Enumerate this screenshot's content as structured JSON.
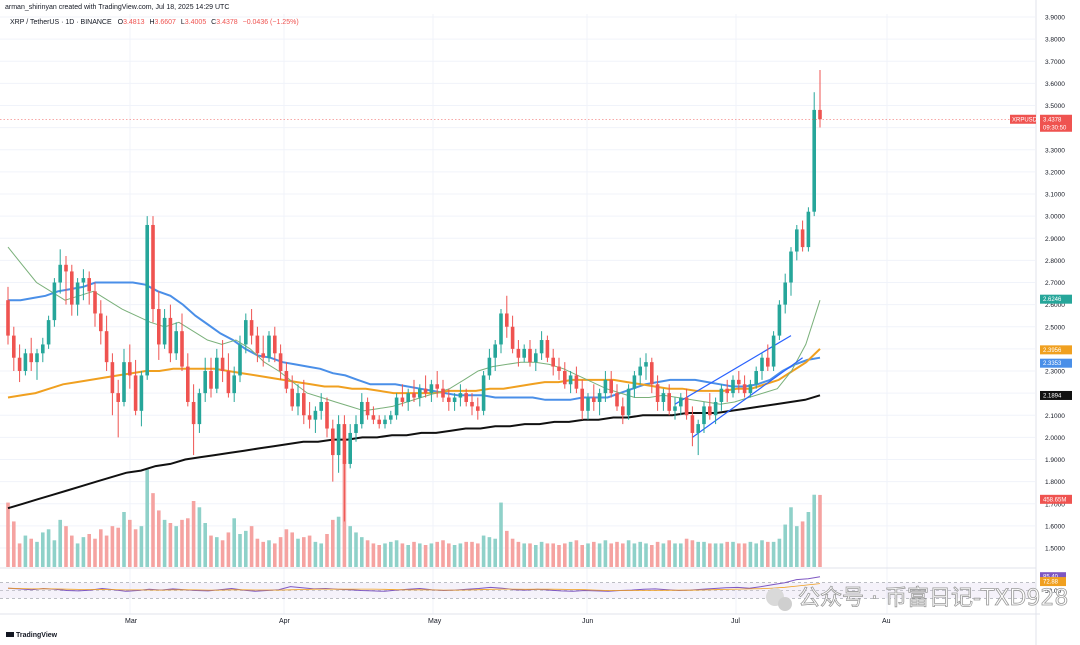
{
  "header": {
    "author_line": "arman_shirinyan created with TradingView.com, Jul 18, 2025 14:29 UTC",
    "symbol_line": "XRP / TetherUS · 1D · BINANCE",
    "open_label": "O",
    "open": "3.4813",
    "high_label": "H",
    "high": "3.6607",
    "low_label": "L",
    "low": "3.4005",
    "close_label": "C",
    "close": "3.4378",
    "change": "−0.0436 (−1.25%)"
  },
  "footer": {
    "brand": "TradingView"
  },
  "watermark": {
    "text": "公众号 · 币富日记-TXD928"
  },
  "colors": {
    "up": "#26a69a",
    "down": "#ef5350",
    "vol_up": "#8fd1c9",
    "vol_down": "#f5a3a1",
    "ema_fast": "#4a8fe8",
    "ema_mid": "#f0a020",
    "ma_long": "#111111",
    "ma_short": "#7ab07a",
    "rsi": "#7e57c2",
    "trendline": "#2962ff"
  },
  "price_axis": {
    "ticks": [
      "3.9000",
      "3.8000",
      "3.7000",
      "3.6000",
      "3.5000",
      "3.4000",
      "3.3000",
      "3.2000",
      "3.1000",
      "3.0000",
      "2.9000",
      "2.8000",
      "2.7000",
      "2.6000",
      "2.5000",
      "2.4000",
      "2.3000",
      "2.2000",
      "2.1000",
      "2.0000",
      "1.9000",
      "1.8000",
      "1.7000",
      "1.6000",
      "1.5000"
    ],
    "badges": [
      {
        "text": "XRPUSDT",
        "color": "#ef5350",
        "value": 3.4378
      },
      {
        "text": "3.4378",
        "color": "#ef5350",
        "value": 3.4378
      },
      {
        "text": "09:30:50",
        "color": "#ef5350",
        "value": 3.4378
      },
      {
        "text": "2.6246",
        "color": "#26a69a",
        "value": 2.6246
      },
      {
        "text": "2.3956",
        "color": "#f0a020",
        "value": 2.3956
      },
      {
        "text": "2.3353",
        "color": "#4a8fe8",
        "value": 2.3353
      },
      {
        "text": "2.1894",
        "color": "#111111",
        "value": 2.1894
      },
      {
        "text": "458.65M",
        "color": "#ef5350",
        "value": 1.72
      }
    ]
  },
  "rsi_panel": {
    "ticks": [
      "50.00"
    ],
    "badges": [
      {
        "text": "85.40",
        "color": "#7e57c2",
        "value": 85.4
      },
      {
        "text": "72.88",
        "color": "#f0a020",
        "value": 72.88
      }
    ]
  },
  "chart_data": {
    "type": "candlestick",
    "symbol": "XRP / TetherUS",
    "timeframe": "1D",
    "exchange": "BINANCE",
    "x_ticks": [
      "Mar",
      "Apr",
      "May",
      "Jun",
      "Jul",
      "Au"
    ],
    "ylim": [
      1.4,
      3.93
    ],
    "grid": true,
    "candles": [
      [
        2.62,
        2.68,
        2.42,
        2.46
      ],
      [
        2.46,
        2.5,
        2.3,
        2.36
      ],
      [
        2.36,
        2.42,
        2.25,
        2.3
      ],
      [
        2.3,
        2.4,
        2.28,
        2.38
      ],
      [
        2.38,
        2.45,
        2.3,
        2.34
      ],
      [
        2.34,
        2.4,
        2.26,
        2.38
      ],
      [
        2.38,
        2.45,
        2.34,
        2.42
      ],
      [
        2.42,
        2.55,
        2.4,
        2.53
      ],
      [
        2.53,
        2.72,
        2.5,
        2.7
      ],
      [
        2.7,
        2.85,
        2.65,
        2.78
      ],
      [
        2.78,
        2.82,
        2.6,
        2.75
      ],
      [
        2.75,
        2.78,
        2.55,
        2.6
      ],
      [
        2.6,
        2.72,
        2.55,
        2.7
      ],
      [
        2.7,
        2.76,
        2.62,
        2.72
      ],
      [
        2.72,
        2.75,
        2.6,
        2.66
      ],
      [
        2.66,
        2.7,
        2.5,
        2.56
      ],
      [
        2.56,
        2.62,
        2.42,
        2.48
      ],
      [
        2.48,
        2.55,
        2.3,
        2.34
      ],
      [
        2.34,
        2.38,
        2.1,
        2.2
      ],
      [
        2.2,
        2.26,
        2.0,
        2.16
      ],
      [
        2.16,
        2.4,
        2.14,
        2.34
      ],
      [
        2.34,
        2.42,
        2.22,
        2.28
      ],
      [
        2.28,
        2.35,
        2.1,
        2.12
      ],
      [
        2.12,
        2.3,
        2.05,
        2.28
      ],
      [
        2.28,
        3.0,
        2.26,
        2.96
      ],
      [
        2.96,
        3.0,
        2.52,
        2.58
      ],
      [
        2.58,
        2.66,
        2.35,
        2.42
      ],
      [
        2.42,
        2.58,
        2.4,
        2.54
      ],
      [
        2.54,
        2.6,
        2.34,
        2.38
      ],
      [
        2.38,
        2.52,
        2.35,
        2.48
      ],
      [
        2.48,
        2.56,
        2.3,
        2.32
      ],
      [
        2.32,
        2.38,
        2.14,
        2.16
      ],
      [
        2.16,
        2.24,
        1.92,
        2.06
      ],
      [
        2.06,
        2.22,
        2.02,
        2.2
      ],
      [
        2.2,
        2.36,
        2.16,
        2.3
      ],
      [
        2.3,
        2.36,
        2.18,
        2.22
      ],
      [
        2.22,
        2.4,
        2.2,
        2.36
      ],
      [
        2.36,
        2.44,
        2.25,
        2.3
      ],
      [
        2.3,
        2.38,
        2.18,
        2.2
      ],
      [
        2.2,
        2.32,
        2.16,
        2.28
      ],
      [
        2.28,
        2.46,
        2.25,
        2.42
      ],
      [
        2.42,
        2.56,
        2.38,
        2.53
      ],
      [
        2.53,
        2.58,
        2.42,
        2.46
      ],
      [
        2.46,
        2.5,
        2.34,
        2.38
      ],
      [
        2.38,
        2.46,
        2.32,
        2.36
      ],
      [
        2.36,
        2.48,
        2.34,
        2.46
      ],
      [
        2.46,
        2.5,
        2.34,
        2.38
      ],
      [
        2.38,
        2.42,
        2.26,
        2.3
      ],
      [
        2.3,
        2.34,
        2.2,
        2.22
      ],
      [
        2.22,
        2.28,
        2.12,
        2.14
      ],
      [
        2.14,
        2.24,
        2.1,
        2.2
      ],
      [
        2.2,
        2.26,
        2.06,
        2.1
      ],
      [
        2.1,
        2.16,
        2.04,
        2.08
      ],
      [
        2.08,
        2.14,
        2.02,
        2.12
      ],
      [
        2.12,
        2.2,
        2.08,
        2.16
      ],
      [
        2.16,
        2.18,
        2.0,
        2.04
      ],
      [
        2.04,
        2.08,
        1.8,
        1.92
      ],
      [
        1.92,
        2.1,
        1.84,
        2.06
      ],
      [
        2.06,
        2.1,
        1.62,
        1.88
      ],
      [
        1.88,
        2.06,
        1.86,
        2.02
      ],
      [
        2.02,
        2.1,
        1.98,
        2.06
      ],
      [
        2.06,
        2.2,
        2.04,
        2.16
      ],
      [
        2.16,
        2.18,
        2.08,
        2.1
      ],
      [
        2.1,
        2.14,
        2.06,
        2.08
      ],
      [
        2.08,
        2.1,
        2.04,
        2.06
      ],
      [
        2.06,
        2.1,
        2.04,
        2.08
      ],
      [
        2.08,
        2.12,
        2.06,
        2.1
      ],
      [
        2.1,
        2.2,
        2.08,
        2.18
      ],
      [
        2.18,
        2.24,
        2.14,
        2.16
      ],
      [
        2.16,
        2.22,
        2.12,
        2.2
      ],
      [
        2.2,
        2.26,
        2.16,
        2.18
      ],
      [
        2.18,
        2.24,
        2.14,
        2.22
      ],
      [
        2.22,
        2.28,
        2.18,
        2.2
      ],
      [
        2.2,
        2.26,
        2.16,
        2.24
      ],
      [
        2.24,
        2.3,
        2.18,
        2.22
      ],
      [
        2.22,
        2.26,
        2.16,
        2.18
      ],
      [
        2.18,
        2.22,
        2.12,
        2.16
      ],
      [
        2.16,
        2.2,
        2.12,
        2.18
      ],
      [
        2.18,
        2.24,
        2.14,
        2.2
      ],
      [
        2.2,
        2.22,
        2.14,
        2.16
      ],
      [
        2.16,
        2.2,
        2.1,
        2.14
      ],
      [
        2.14,
        2.18,
        2.08,
        2.12
      ],
      [
        2.12,
        2.3,
        2.1,
        2.28
      ],
      [
        2.28,
        2.4,
        2.26,
        2.36
      ],
      [
        2.36,
        2.44,
        2.3,
        2.42
      ],
      [
        2.42,
        2.58,
        2.38,
        2.56
      ],
      [
        2.56,
        2.64,
        2.45,
        2.5
      ],
      [
        2.5,
        2.55,
        2.38,
        2.4
      ],
      [
        2.4,
        2.44,
        2.32,
        2.36
      ],
      [
        2.36,
        2.42,
        2.34,
        2.4
      ],
      [
        2.4,
        2.44,
        2.32,
        2.34
      ],
      [
        2.34,
        2.4,
        2.3,
        2.38
      ],
      [
        2.38,
        2.48,
        2.35,
        2.44
      ],
      [
        2.44,
        2.46,
        2.34,
        2.36
      ],
      [
        2.36,
        2.4,
        2.28,
        2.32
      ],
      [
        2.32,
        2.36,
        2.26,
        2.3
      ],
      [
        2.3,
        2.34,
        2.22,
        2.24
      ],
      [
        2.24,
        2.3,
        2.2,
        2.28
      ],
      [
        2.28,
        2.32,
        2.2,
        2.22
      ],
      [
        2.22,
        2.26,
        2.08,
        2.12
      ],
      [
        2.12,
        2.2,
        2.08,
        2.18
      ],
      [
        2.18,
        2.24,
        2.12,
        2.16
      ],
      [
        2.16,
        2.22,
        2.1,
        2.2
      ],
      [
        2.2,
        2.3,
        2.16,
        2.26
      ],
      [
        2.26,
        2.3,
        2.18,
        2.2
      ],
      [
        2.2,
        2.24,
        2.12,
        2.14
      ],
      [
        2.14,
        2.18,
        2.06,
        2.1
      ],
      [
        2.1,
        2.24,
        2.08,
        2.22
      ],
      [
        2.22,
        2.3,
        2.18,
        2.28
      ],
      [
        2.28,
        2.36,
        2.24,
        2.32
      ],
      [
        2.32,
        2.38,
        2.26,
        2.34
      ],
      [
        2.34,
        2.36,
        2.2,
        2.24
      ],
      [
        2.24,
        2.28,
        2.12,
        2.16
      ],
      [
        2.16,
        2.22,
        2.12,
        2.2
      ],
      [
        2.2,
        2.24,
        2.1,
        2.12
      ],
      [
        2.12,
        2.18,
        2.08,
        2.14
      ],
      [
        2.14,
        2.2,
        2.1,
        2.18
      ],
      [
        2.18,
        2.22,
        2.08,
        2.1
      ],
      [
        2.1,
        2.14,
        1.96,
        2.02
      ],
      [
        2.02,
        2.08,
        1.92,
        2.06
      ],
      [
        2.06,
        2.16,
        2.02,
        2.14
      ],
      [
        2.14,
        2.2,
        2.08,
        2.1
      ],
      [
        2.1,
        2.18,
        2.06,
        2.16
      ],
      [
        2.16,
        2.24,
        2.12,
        2.22
      ],
      [
        2.22,
        2.26,
        2.16,
        2.2
      ],
      [
        2.2,
        2.28,
        2.18,
        2.26
      ],
      [
        2.26,
        2.3,
        2.2,
        2.24
      ],
      [
        2.24,
        2.28,
        2.18,
        2.2
      ],
      [
        2.2,
        2.26,
        2.18,
        2.24
      ],
      [
        2.24,
        2.32,
        2.22,
        2.3
      ],
      [
        2.3,
        2.38,
        2.26,
        2.36
      ],
      [
        2.36,
        2.42,
        2.3,
        2.32
      ],
      [
        2.32,
        2.48,
        2.3,
        2.46
      ],
      [
        2.46,
        2.62,
        2.44,
        2.6
      ],
      [
        2.6,
        2.74,
        2.56,
        2.7
      ],
      [
        2.7,
        2.86,
        2.64,
        2.84
      ],
      [
        2.84,
        2.96,
        2.8,
        2.94
      ],
      [
        2.94,
        2.98,
        2.84,
        2.86
      ],
      [
        2.86,
        3.04,
        2.84,
        3.02
      ],
      [
        3.02,
        3.56,
        3.0,
        3.48
      ],
      [
        3.48,
        3.6607,
        3.4005,
        3.4378
      ]
    ],
    "volume_values_m": [
      410,
      290,
      150,
      200,
      180,
      160,
      220,
      240,
      170,
      300,
      260,
      200,
      150,
      190,
      210,
      180,
      240,
      200,
      260,
      250,
      350,
      300,
      240,
      260,
      620,
      470,
      360,
      300,
      280,
      260,
      300,
      310,
      420,
      380,
      280,
      200,
      190,
      170,
      220,
      310,
      210,
      230,
      260,
      180,
      160,
      170,
      150,
      190,
      240,
      220,
      180,
      190,
      200,
      160,
      150,
      210,
      300,
      320,
      680,
      260,
      220,
      190,
      170,
      150,
      140,
      150,
      160,
      170,
      150,
      140,
      160,
      150,
      140,
      150,
      160,
      170,
      150,
      140,
      150,
      160,
      160,
      150,
      200,
      190,
      180,
      410,
      230,
      180,
      160,
      150,
      150,
      140,
      160,
      150,
      150,
      140,
      150,
      160,
      170,
      140,
      150,
      160,
      150,
      170,
      150,
      160,
      150,
      170,
      150,
      160,
      150,
      140,
      160,
      150,
      170,
      150,
      150,
      180,
      170,
      160,
      160,
      150,
      150,
      150,
      160,
      160,
      150,
      150,
      160,
      150,
      170,
      160,
      160,
      180,
      270,
      380,
      260,
      290,
      350,
      460,
      458.65
    ],
    "series": [
      {
        "name": "EMA",
        "color": "#4a8fe8",
        "values": [
          2.62,
          2.62,
          2.63,
          2.64,
          2.66,
          2.67,
          2.68,
          2.7,
          2.7,
          2.7,
          2.7,
          2.69,
          2.66,
          2.64,
          2.6,
          2.55,
          2.51,
          2.47,
          2.44,
          2.4,
          2.37,
          2.36,
          2.34,
          2.33,
          2.32,
          2.31,
          2.29,
          2.28,
          2.26,
          2.24,
          2.24,
          2.24,
          2.23,
          2.22,
          2.21,
          2.2,
          2.19,
          2.19,
          2.19,
          2.18,
          2.18,
          2.18,
          2.18,
          2.17,
          2.17,
          2.17,
          2.18,
          2.18,
          2.18,
          2.2,
          2.22,
          2.24,
          2.25,
          2.26,
          2.26,
          2.26,
          2.25,
          2.24,
          2.23,
          2.23,
          2.24,
          2.26,
          2.3,
          2.33,
          2.35,
          2.36
        ]
      },
      {
        "name": "EMA",
        "color": "#f0a020",
        "values": [
          2.18,
          2.19,
          2.2,
          2.22,
          2.24,
          2.25,
          2.26,
          2.27,
          2.28,
          2.29,
          2.3,
          2.3,
          2.31,
          2.31,
          2.31,
          2.31,
          2.3,
          2.29,
          2.28,
          2.27,
          2.26,
          2.25,
          2.24,
          2.23,
          2.23,
          2.22,
          2.22,
          2.21,
          2.2,
          2.2,
          2.2,
          2.2,
          2.21,
          2.21,
          2.21,
          2.22,
          2.22,
          2.23,
          2.24,
          2.25,
          2.25,
          2.26,
          2.26,
          2.26,
          2.26,
          2.25,
          2.24,
          2.23,
          2.22,
          2.22,
          2.21,
          2.21,
          2.21,
          2.22,
          2.22,
          2.24,
          2.26,
          2.3,
          2.34,
          2.4
        ]
      },
      {
        "name": "MA",
        "color": "#111111",
        "values": [
          1.68,
          1.7,
          1.72,
          1.74,
          1.76,
          1.78,
          1.8,
          1.82,
          1.84,
          1.85,
          1.87,
          1.88,
          1.9,
          1.91,
          1.92,
          1.93,
          1.94,
          1.95,
          1.96,
          1.97,
          1.98,
          1.98,
          1.99,
          1.99,
          2.0,
          2.0,
          2.01,
          2.01,
          2.02,
          2.02,
          2.03,
          2.04,
          2.04,
          2.05,
          2.05,
          2.06,
          2.06,
          2.07,
          2.07,
          2.08,
          2.08,
          2.09,
          2.09,
          2.1,
          2.1,
          2.1,
          2.11,
          2.11,
          2.11,
          2.12,
          2.13,
          2.14,
          2.15,
          2.16,
          2.17,
          2.19
        ]
      },
      {
        "name": "MA",
        "color": "#7ab07a",
        "values": [
          2.86,
          2.78,
          2.7,
          2.66,
          2.62,
          2.64,
          2.66,
          2.62,
          2.58,
          2.55,
          2.52,
          2.5,
          2.52,
          2.48,
          2.44,
          2.42,
          2.44,
          2.4,
          2.34,
          2.3,
          2.25,
          2.2,
          2.18,
          2.16,
          2.14,
          2.12,
          2.13,
          2.14,
          2.16,
          2.18,
          2.2,
          2.22,
          2.26,
          2.3,
          2.32,
          2.33,
          2.34,
          2.34,
          2.33,
          2.31,
          2.28,
          2.25,
          2.22,
          2.2,
          2.18,
          2.18,
          2.19,
          2.18,
          2.17,
          2.16,
          2.15,
          2.16,
          2.18,
          2.2,
          2.22,
          2.3,
          2.42,
          2.62
        ]
      }
    ],
    "rsi_values": [
      56,
      54,
      52,
      55,
      53,
      50,
      49,
      51,
      55,
      52,
      48,
      50,
      53,
      51,
      54,
      52,
      50,
      49,
      52,
      55,
      51,
      48,
      50,
      52,
      60,
      57,
      54,
      55,
      53,
      52,
      50,
      49,
      48,
      51,
      53,
      55,
      52,
      50,
      51,
      53,
      55,
      58,
      56,
      52,
      51,
      53,
      51,
      49,
      48,
      50,
      49,
      48,
      50,
      51,
      53,
      54,
      52,
      50,
      51,
      53,
      55,
      57,
      58,
      56,
      60,
      65,
      70,
      78,
      80,
      85.4
    ],
    "rsi_ticks": [
      70,
      50,
      30
    ],
    "trendlines": [
      {
        "color": "#2962ff",
        "points": [
          [
            2.0,
            118
          ],
          [
            2.36,
            137
          ]
        ]
      },
      {
        "color": "#2962ff",
        "points": [
          [
            2.15,
            115
          ],
          [
            2.46,
            135
          ]
        ]
      }
    ]
  }
}
